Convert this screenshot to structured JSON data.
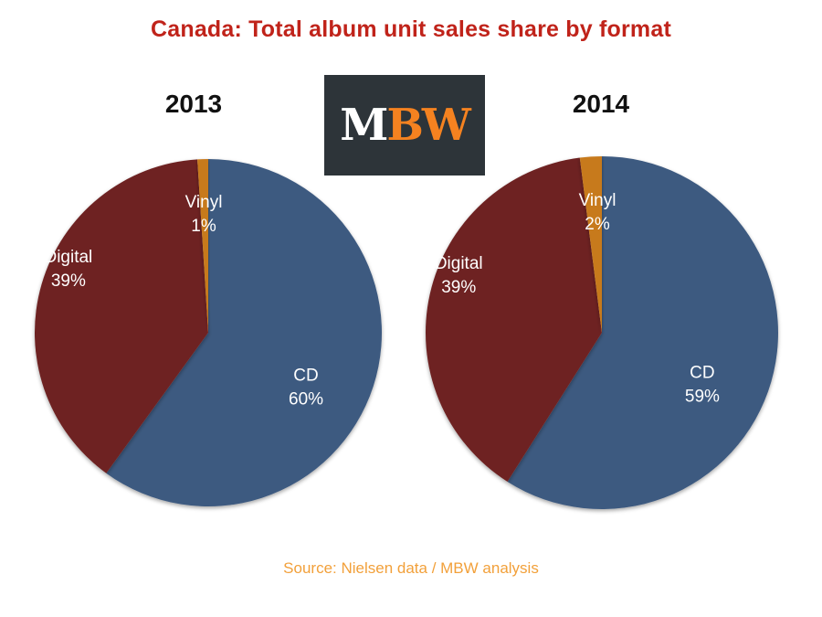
{
  "title": "Canada: Total album unit sales share by format",
  "logo": {
    "text_m": "M",
    "text_bw": "BW"
  },
  "source": "Source: Nielsen data / MBW analysis",
  "colors": {
    "title": "#c0231a",
    "cd": "#3e5a80",
    "digital": "#6e2424",
    "vinyl": "#c77a1f",
    "logo_bg": "#2d3439",
    "logo_accent": "#f58220",
    "source": "#f2a03a"
  },
  "chart_data": [
    {
      "type": "pie",
      "title": "2013",
      "slices": [
        {
          "label": "CD",
          "value": 60,
          "value_label": "60%",
          "color": "#3e5a80"
        },
        {
          "label": "Digital",
          "value": 39,
          "value_label": "39%",
          "color": "#6e2424"
        },
        {
          "label": "Vinyl",
          "value": 1,
          "value_label": "1%",
          "color": "#c77a1f"
        }
      ]
    },
    {
      "type": "pie",
      "title": "2014",
      "slices": [
        {
          "label": "CD",
          "value": 59,
          "value_label": "59%",
          "color": "#3e5a80"
        },
        {
          "label": "Digital",
          "value": 39,
          "value_label": "39%",
          "color": "#6e2424"
        },
        {
          "label": "Vinyl",
          "value": 2,
          "value_label": "2%",
          "color": "#c77a1f"
        }
      ]
    }
  ]
}
